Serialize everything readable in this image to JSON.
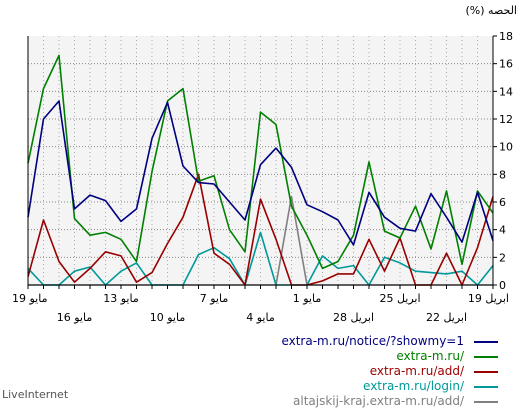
{
  "footer": {
    "brand": "LiveInternet"
  },
  "chart_data": {
    "type": "line",
    "ylabel": "(%) الحصه",
    "ylim": [
      0,
      18
    ],
    "yticks": [
      0,
      2,
      4,
      6,
      8,
      10,
      12,
      14,
      16,
      18
    ],
    "grid": true,
    "legend_placement": "bottom-right",
    "x": [
      "19 مايو",
      "18 مايو",
      "17 مايو",
      "16 مايو",
      "15 مايو",
      "14 مايو",
      "13 مايو",
      "12 مايو",
      "11 مايو",
      "10 مايو",
      "9 مايو",
      "8 مايو",
      "7 مايو",
      "6 مايو",
      "5 مايو",
      "4 مايو",
      "3 مايو",
      "2 مايو",
      "1 مايو",
      "30 ابريل",
      "29 ابريل",
      "28 ابريل",
      "27 ابريل",
      "26 ابريل",
      "25 ابريل",
      "24 ابريل",
      "23 ابريل",
      "22 ابريل",
      "21 ابريل",
      "20 ابريل",
      "19 ابريل"
    ],
    "x_tick_labels_top": [
      {
        "i": 0,
        "label": "19 مايو"
      },
      {
        "i": 6,
        "label": "13 مايو"
      },
      {
        "i": 12,
        "label": "7 مايو"
      },
      {
        "i": 18,
        "label": "1 مايو"
      },
      {
        "i": 24,
        "label": "25 ابريل"
      },
      {
        "i": 30,
        "label": "19 ابريل"
      }
    ],
    "x_tick_labels_bottom": [
      {
        "i": 3,
        "label": "16 مايو"
      },
      {
        "i": 9,
        "label": "10 مايو"
      },
      {
        "i": 15,
        "label": "4 مايو"
      },
      {
        "i": 21,
        "label": "28 ابريل"
      },
      {
        "i": 27,
        "label": "22 ابريل"
      }
    ],
    "series": [
      {
        "name": "extra-m.ru/notice/?showmy=1",
        "color": "#000080",
        "values": [
          4.9,
          12.0,
          13.3,
          5.5,
          6.5,
          6.1,
          4.6,
          5.5,
          10.6,
          13.2,
          8.6,
          7.4,
          7.3,
          6.0,
          4.7,
          8.7,
          9.9,
          8.5,
          5.8,
          5.3,
          4.7,
          2.9,
          6.7,
          4.9,
          4.1,
          3.9,
          6.6,
          4.9,
          3.1,
          6.7,
          3.2
        ]
      },
      {
        "name": "extra-m.ru/",
        "color": "#008000",
        "values": [
          8.8,
          14.2,
          16.6,
          4.8,
          3.6,
          3.8,
          3.3,
          1.7,
          8.2,
          13.3,
          14.2,
          7.5,
          7.9,
          4.0,
          2.4,
          12.5,
          11.6,
          5.7,
          3.6,
          1.2,
          1.7,
          3.6,
          8.9,
          3.9,
          3.4,
          5.7,
          2.6,
          6.8,
          1.5,
          6.8,
          5.2
        ]
      },
      {
        "name": "extra-m.ru/add/",
        "color": "#990000",
        "values": [
          0.6,
          4.7,
          1.7,
          0.2,
          1.2,
          2.4,
          2.1,
          0.2,
          0.9,
          3.0,
          4.9,
          8.0,
          2.3,
          1.5,
          0.0,
          6.2,
          3.3,
          0.0,
          0.0,
          0.3,
          0.8,
          0.8,
          3.3,
          1.0,
          3.4,
          0.0,
          0.0,
          2.3,
          0.0,
          2.7,
          6.4
        ]
      },
      {
        "name": "extra-m.ru/login/",
        "color": "#009999",
        "values": [
          1.2,
          0.0,
          0.0,
          1.0,
          1.3,
          0.0,
          1.0,
          1.6,
          0.0,
          0.0,
          0.0,
          2.2,
          2.7,
          1.9,
          0.0,
          3.8,
          0.0,
          0.0,
          0.0,
          2.1,
          1.2,
          1.4,
          0.0,
          2.0,
          1.6,
          1.0,
          0.9,
          0.8,
          1.0,
          0.0,
          1.4
        ]
      },
      {
        "name": "altajskij-kraj.extra-m.ru/add/",
        "color": "#808080",
        "values": [
          0,
          0,
          0,
          0,
          0,
          0,
          0,
          0,
          0,
          0,
          0,
          0,
          0,
          0,
          0,
          0,
          0,
          6.4,
          0,
          0,
          0,
          0,
          0,
          0,
          0,
          0,
          0,
          0,
          0,
          0,
          0
        ]
      }
    ]
  }
}
